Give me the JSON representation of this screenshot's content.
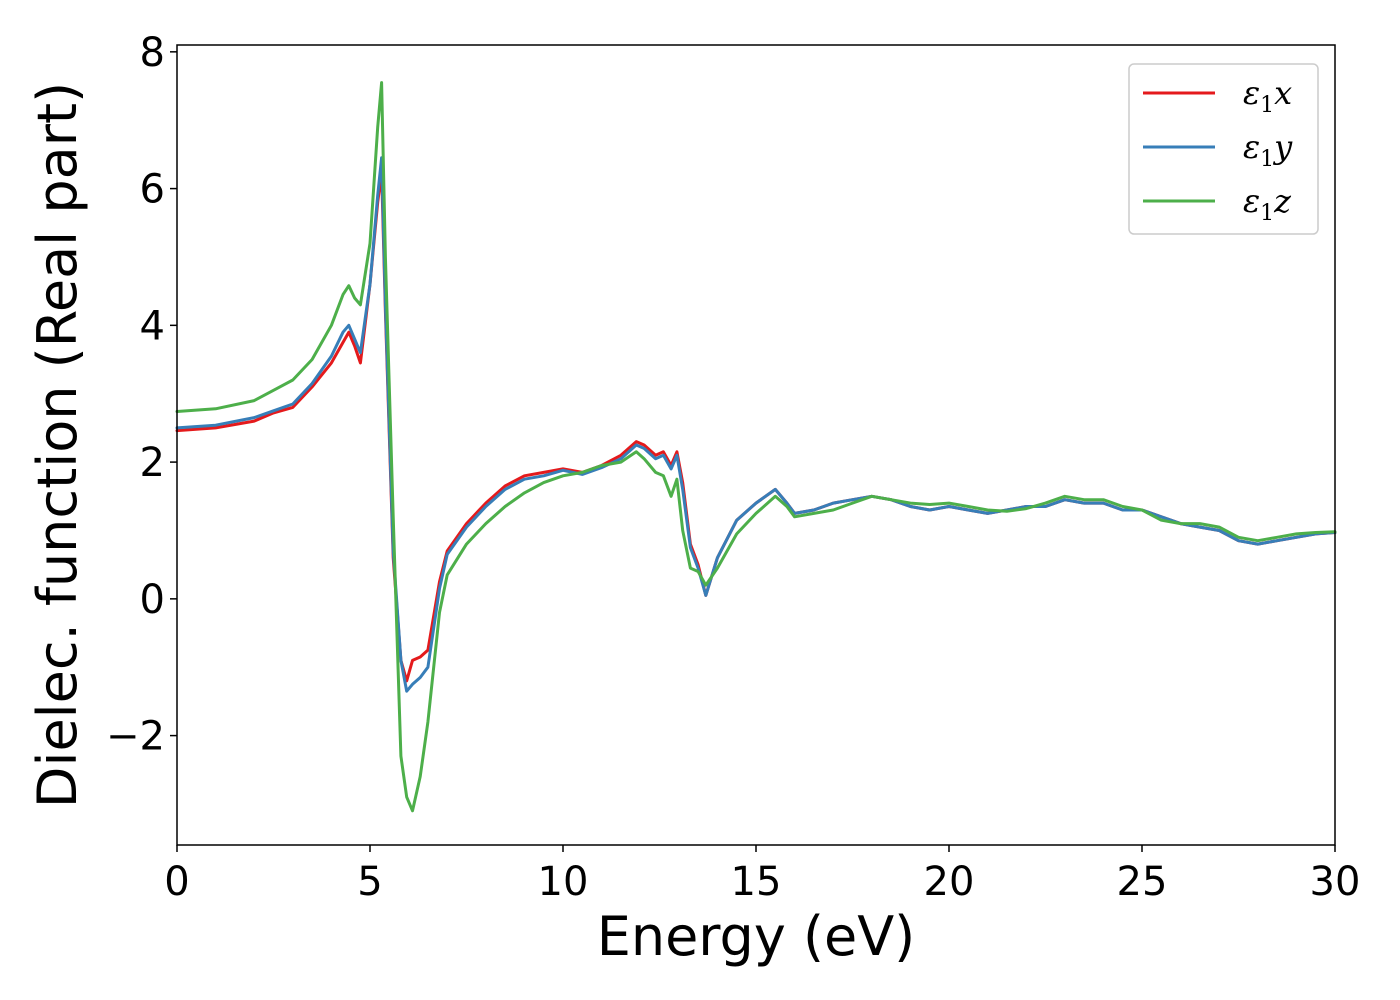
{
  "chart_data": {
    "type": "line",
    "title": "",
    "xlabel": "Energy (eV)",
    "ylabel": "Dielec. function (Real part)",
    "xlim": [
      0,
      30
    ],
    "ylim": [
      -3.6,
      8.1
    ],
    "xticks": [
      0,
      5,
      10,
      15,
      20,
      25,
      30
    ],
    "xtick_labels": [
      "0",
      "5",
      "10",
      "15",
      "20",
      "25",
      "30"
    ],
    "yticks": [
      -2,
      0,
      2,
      4,
      6,
      8
    ],
    "ytick_labels": [
      "−2",
      "0",
      "2",
      "4",
      "6",
      "8"
    ],
    "grid": false,
    "legend_position": "top-right",
    "x": [
      0,
      1,
      2,
      2.5,
      3,
      3.5,
      4,
      4.3,
      4.45,
      4.6,
      4.75,
      5.0,
      5.2,
      5.3,
      5.4,
      5.6,
      5.8,
      5.95,
      6.1,
      6.3,
      6.5,
      6.8,
      7,
      7.5,
      8,
      8.5,
      9,
      9.5,
      10,
      10.5,
      11,
      11.5,
      11.9,
      12.1,
      12.4,
      12.6,
      12.8,
      12.95,
      13.1,
      13.3,
      13.5,
      13.7,
      14,
      14.5,
      15,
      15.5,
      15.8,
      16,
      16.5,
      17,
      17.5,
      18,
      18.5,
      19,
      19.5,
      20,
      20.5,
      21,
      21.5,
      22,
      22.5,
      23,
      23.5,
      24,
      24.5,
      25,
      25.5,
      26,
      26.5,
      27,
      27.5,
      28,
      28.5,
      29,
      29.5,
      30
    ],
    "series": [
      {
        "name": "ε₁x",
        "label_base": "ε",
        "label_sub": "1",
        "label_var": "x",
        "color": "#e41a1c",
        "values": [
          2.46,
          2.5,
          2.6,
          2.72,
          2.8,
          3.1,
          3.45,
          3.75,
          3.9,
          3.7,
          3.45,
          4.6,
          5.8,
          6.25,
          4.2,
          0.6,
          -0.9,
          -1.2,
          -0.9,
          -0.85,
          -0.75,
          0.25,
          0.7,
          1.1,
          1.4,
          1.65,
          1.8,
          1.85,
          1.9,
          1.85,
          1.95,
          2.1,
          2.3,
          2.25,
          2.1,
          2.15,
          1.95,
          2.15,
          1.7,
          0.8,
          0.5,
          0.05,
          0.6,
          1.15,
          1.4,
          1.6,
          1.4,
          1.25,
          1.3,
          1.4,
          1.45,
          1.5,
          1.45,
          1.35,
          1.3,
          1.35,
          1.3,
          1.25,
          1.3,
          1.35,
          1.35,
          1.45,
          1.4,
          1.4,
          1.3,
          1.3,
          1.2,
          1.1,
          1.05,
          1.0,
          0.85,
          0.8,
          0.85,
          0.9,
          0.95,
          0.97
        ]
      },
      {
        "name": "ε₁y",
        "label_base": "ε",
        "label_sub": "1",
        "label_var": "y",
        "color": "#377eb8",
        "values": [
          2.5,
          2.54,
          2.65,
          2.75,
          2.85,
          3.15,
          3.55,
          3.9,
          4.0,
          3.8,
          3.6,
          4.6,
          5.9,
          6.45,
          4.3,
          0.7,
          -0.9,
          -1.35,
          -1.25,
          -1.15,
          -1.0,
          0.15,
          0.65,
          1.05,
          1.35,
          1.6,
          1.75,
          1.8,
          1.88,
          1.82,
          1.92,
          2.05,
          2.25,
          2.2,
          2.05,
          2.1,
          1.9,
          2.1,
          1.6,
          0.75,
          0.45,
          0.05,
          0.6,
          1.15,
          1.4,
          1.6,
          1.4,
          1.25,
          1.3,
          1.4,
          1.45,
          1.5,
          1.45,
          1.35,
          1.3,
          1.35,
          1.3,
          1.25,
          1.3,
          1.35,
          1.35,
          1.45,
          1.4,
          1.4,
          1.3,
          1.3,
          1.2,
          1.1,
          1.05,
          1.0,
          0.85,
          0.8,
          0.85,
          0.9,
          0.95,
          0.97
        ]
      },
      {
        "name": "ε₁z",
        "label_base": "ε",
        "label_sub": "1",
        "label_var": "z",
        "color": "#4daf4a",
        "values": [
          2.74,
          2.78,
          2.9,
          3.05,
          3.2,
          3.5,
          4.0,
          4.45,
          4.58,
          4.4,
          4.3,
          5.2,
          6.9,
          7.55,
          5.0,
          1.2,
          -2.3,
          -2.9,
          -3.1,
          -2.6,
          -1.8,
          -0.2,
          0.35,
          0.8,
          1.1,
          1.35,
          1.55,
          1.7,
          1.8,
          1.85,
          1.95,
          2.0,
          2.15,
          2.05,
          1.85,
          1.8,
          1.5,
          1.75,
          1.0,
          0.45,
          0.4,
          0.2,
          0.45,
          0.95,
          1.25,
          1.5,
          1.35,
          1.2,
          1.25,
          1.3,
          1.4,
          1.5,
          1.45,
          1.4,
          1.38,
          1.4,
          1.35,
          1.3,
          1.28,
          1.32,
          1.4,
          1.5,
          1.45,
          1.45,
          1.35,
          1.3,
          1.15,
          1.1,
          1.1,
          1.05,
          0.9,
          0.85,
          0.9,
          0.95,
          0.97,
          0.98
        ]
      }
    ]
  }
}
